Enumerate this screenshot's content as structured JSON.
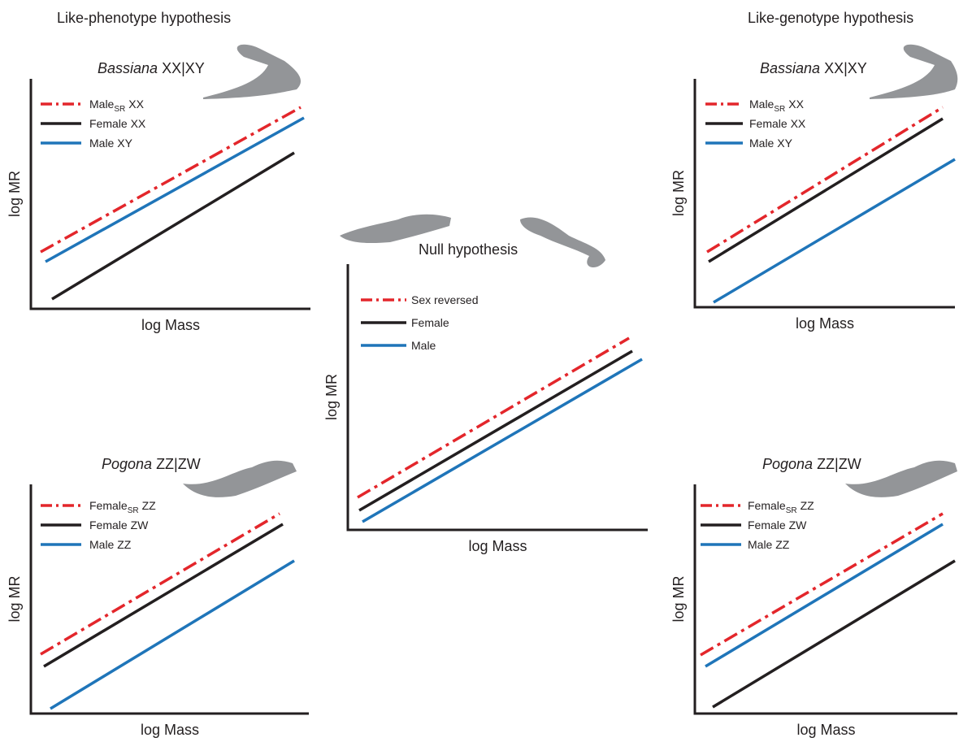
{
  "headers": {
    "left": "Like-phenotype hypothesis",
    "right": "Like-genotype hypothesis"
  },
  "panels": [
    {
      "title": {
        "italic": "Bassiana",
        "rest": "XX|XY"
      },
      "y_label": "log MR",
      "x_label": "log Mass",
      "legend": [
        {
          "label": "Male",
          "sub": "SR",
          "rest": "XX",
          "color": "#e3262b",
          "dash": true
        },
        {
          "label": "Female XX",
          "color": "#231f20"
        },
        {
          "label": "Male XY",
          "color": "#1f75b9"
        }
      ]
    },
    {
      "title": {
        "italic": "Pogona",
        "rest": "ZZ|ZW"
      },
      "y_label": "log MR",
      "x_label": "log Mass",
      "legend": [
        {
          "label": "Female",
          "sub": "SR",
          "rest": "ZZ",
          "color": "#e3262b",
          "dash": true
        },
        {
          "label": "Female ZW",
          "color": "#231f20"
        },
        {
          "label": "Male ZZ",
          "color": "#1f75b9"
        }
      ]
    },
    {
      "title": {
        "rest": "Null hypothesis"
      },
      "y_label": "log MR",
      "x_label": "log Mass",
      "legend": [
        {
          "label": "Sex reversed",
          "color": "#e3262b",
          "dash": true
        },
        {
          "label": "Female",
          "color": "#231f20"
        },
        {
          "label": "Male",
          "color": "#1f75b9"
        }
      ]
    },
    {
      "title": {
        "italic": "Bassiana",
        "rest": "XX|XY"
      },
      "y_label": "log MR",
      "x_label": "log Mass",
      "legend": [
        {
          "label": "Male",
          "sub": "SR",
          "rest": "XX",
          "color": "#e3262b",
          "dash": true
        },
        {
          "label": "Female XX",
          "color": "#231f20"
        },
        {
          "label": "Male XY",
          "color": "#1f75b9"
        }
      ]
    },
    {
      "title": {
        "italic": "Pogona",
        "rest": "ZZ|ZW"
      },
      "y_label": "log MR",
      "x_label": "log Mass",
      "legend": [
        {
          "label": "Female",
          "sub": "SR",
          "rest": "ZZ",
          "color": "#e3262b",
          "dash": true
        },
        {
          "label": "Female ZW",
          "color": "#231f20"
        },
        {
          "label": "Male ZZ",
          "color": "#1f75b9"
        }
      ]
    }
  ]
}
